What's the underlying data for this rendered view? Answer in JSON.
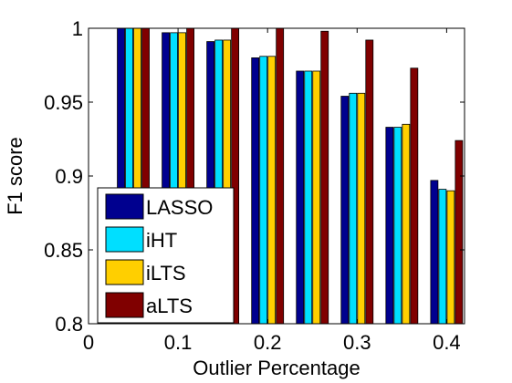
{
  "chart_data": {
    "type": "bar",
    "xlabel": "Outlier Percentage",
    "ylabel": "F1 score",
    "x": [
      0.05,
      0.1,
      0.15,
      0.2,
      0.25,
      0.3,
      0.35,
      0.4
    ],
    "xticks": [
      0,
      0.1,
      0.2,
      0.3,
      0.4
    ],
    "xtick_labels": [
      "0",
      "0.1",
      "0.2",
      "0.3",
      "0.4"
    ],
    "xlim": [
      0,
      0.42
    ],
    "yticks": [
      0.8,
      0.85,
      0.9,
      0.95,
      1
    ],
    "ytick_labels": [
      "0.8",
      "0.85",
      "0.9",
      "0.95",
      "1"
    ],
    "ylim": [
      0.8,
      1
    ],
    "grid": false,
    "legend_position": "bottom-left",
    "series": [
      {
        "name": "LASSO",
        "color": "#00008F",
        "values": [
          1.0,
          0.997,
          0.991,
          0.98,
          0.971,
          0.954,
          0.933,
          0.897
        ]
      },
      {
        "name": "iHT",
        "color": "#00DFFF",
        "values": [
          1.0,
          0.997,
          0.992,
          0.981,
          0.971,
          0.956,
          0.933,
          0.891
        ]
      },
      {
        "name": "iLTS",
        "color": "#FFCF00",
        "values": [
          1.0,
          0.997,
          0.992,
          0.981,
          0.971,
          0.956,
          0.935,
          0.89
        ]
      },
      {
        "name": "aLTS",
        "color": "#800000",
        "values": [
          1.0,
          1.0,
          1.0,
          1.0,
          0.998,
          0.992,
          0.973,
          0.924
        ]
      }
    ]
  }
}
